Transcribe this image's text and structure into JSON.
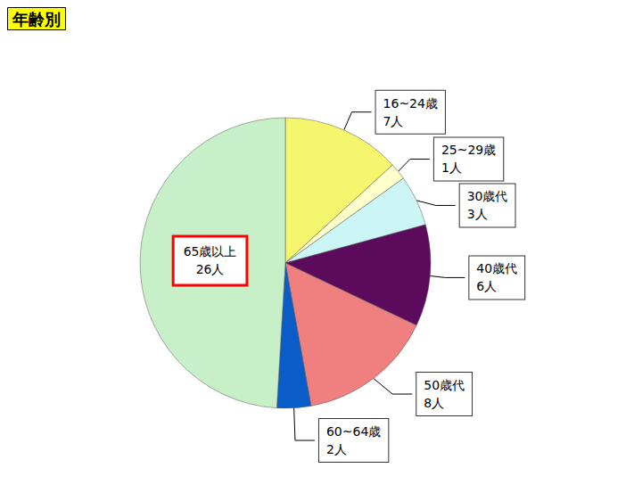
{
  "chart_data": {
    "type": "pie",
    "title": "年齢別",
    "categories": [
      "16~24歳",
      "25~29歳",
      "30歳代",
      "40歳代",
      "50歳代",
      "60~64歳",
      "65歳以上"
    ],
    "values": [
      7,
      1,
      3,
      6,
      8,
      2,
      26
    ],
    "value_labels": [
      "7人",
      "1人",
      "3人",
      "6人",
      "8人",
      "2人",
      "26人"
    ],
    "colors": [
      "#f5f56e",
      "#ffffcc",
      "#ccf5f5",
      "#5c0a5c",
      "#f08080",
      "#0a5cc8",
      "#c8f0c8"
    ],
    "data_labels": true
  }
}
